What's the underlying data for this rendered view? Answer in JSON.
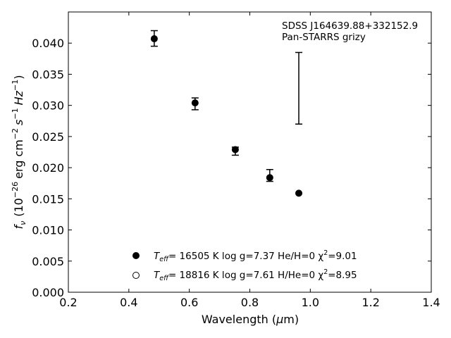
{
  "chart_data": {
    "type": "scatter",
    "xlabel_main": "Wavelength (",
    "xlabel_mu": "μ",
    "xlabel_unit": "m)",
    "ylabel_f": "f",
    "ylabel_nu": "ν",
    "ylabel_open": "(10",
    "ylabel_exp1": "−26",
    "ylabel_erg": "erg cm",
    "ylabel_exp2": "−2",
    "ylabel_s": "s",
    "ylabel_exp3": "−1",
    "ylabel_hz": "Hz",
    "ylabel_exp4": "−1",
    "ylabel_close": ")",
    "xlim": [
      0.2,
      1.4
    ],
    "ylim": [
      0.0,
      0.045
    ],
    "xticks": [
      0.2,
      0.4,
      0.6,
      0.8,
      1.0,
      1.2,
      1.4
    ],
    "xtick_labels": [
      "0.2",
      "0.4",
      "0.6",
      "0.8",
      "1.0",
      "1.2",
      "1.4"
    ],
    "yticks": [
      0.0,
      0.005,
      0.01,
      0.015,
      0.02,
      0.025,
      0.03,
      0.035,
      0.04
    ],
    "ytick_labels": [
      "0.000",
      "0.005",
      "0.010",
      "0.015",
      "0.020",
      "0.025",
      "0.030",
      "0.035",
      "0.040"
    ],
    "grid": false,
    "annotations": [
      "SDSS J164639.88+332152.9",
      "Pan-STARRS grizy"
    ],
    "observed": {
      "x": [
        0.484,
        0.619,
        0.752,
        0.866,
        0.962
      ],
      "y": [
        0.0408,
        0.0302,
        0.0229,
        0.0188,
        null
      ],
      "yerr_low": [
        0.0395,
        0.0293,
        0.022,
        0.0178,
        0.027
      ],
      "yerr_high": [
        0.042,
        0.0312,
        0.0233,
        0.0197,
        0.0385
      ]
    },
    "series": [
      {
        "marker": "filled",
        "x": [
          0.484,
          0.619,
          0.752,
          0.866,
          0.962
        ],
        "y": [
          0.0407,
          0.0304,
          0.0229,
          0.0184,
          0.0159
        ],
        "legend_parts": [
          "T",
          "eff",
          "= 16505 K  log g=7.37  He/H=0  χ",
          "2",
          "=9.01"
        ]
      },
      {
        "marker": "open",
        "x": [],
        "y": [],
        "legend_parts": [
          "T",
          "eff",
          "= 18816 K  log g=7.61  H/He=0  χ",
          "2",
          "=8.95"
        ]
      }
    ]
  }
}
